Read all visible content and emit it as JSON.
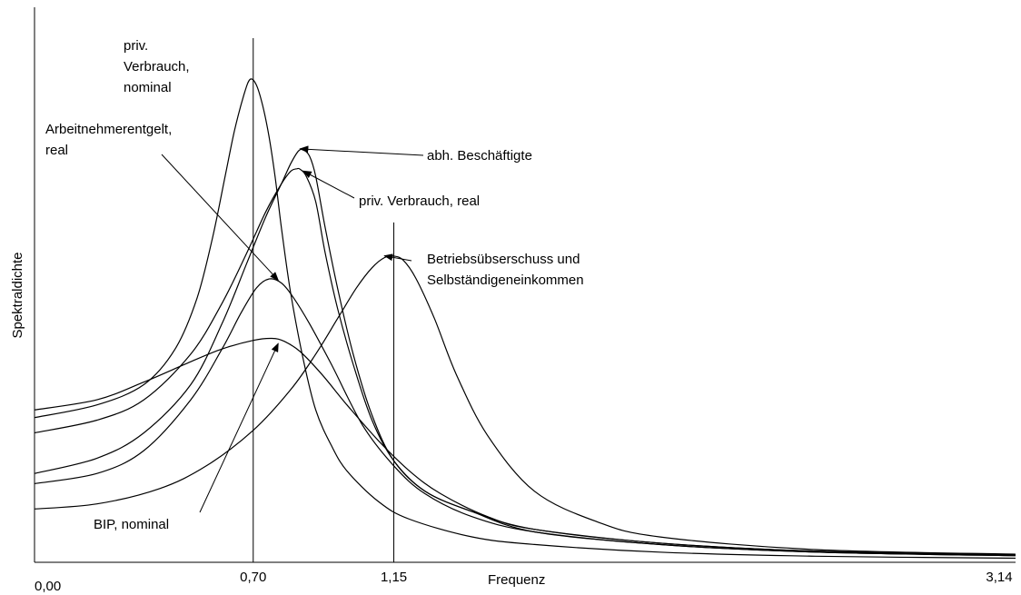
{
  "chart_data": {
    "type": "line",
    "title": "",
    "xlabel": "Frequenz",
    "ylabel": "Spektraldichte",
    "xlim": [
      0,
      3.14
    ],
    "ylim": [
      0,
      1
    ],
    "grid": false,
    "y_tick_labels": false,
    "x_ticks": [
      {
        "value": 0.0,
        "label": "0,00"
      },
      {
        "value": 0.7,
        "label": "0,70"
      },
      {
        "value": 1.15,
        "label": "1,15"
      },
      {
        "value": 3.14,
        "label": "3,14"
      }
    ],
    "reference_lines": [
      {
        "x": 0.7,
        "y_top": 1.0
      },
      {
        "x": 1.15,
        "y_top": 0.637
      }
    ],
    "series": [
      {
        "label_lines": [
          "priv.",
          "Verbrauch,",
          "nominal"
        ],
        "color": "#000000",
        "x": [
          0.0,
          0.2,
          0.35,
          0.45,
          0.52,
          0.57,
          0.61,
          0.64,
          0.67,
          0.69,
          0.71,
          0.73,
          0.75,
          0.77,
          0.79,
          0.82,
          0.86,
          0.9,
          0.95,
          1.0,
          1.1,
          1.2,
          1.4,
          1.6,
          2.0,
          2.5,
          3.14
        ],
        "values": [
          0.285,
          0.31,
          0.35,
          0.42,
          0.52,
          0.64,
          0.76,
          0.85,
          0.92,
          0.951,
          0.94,
          0.9,
          0.84,
          0.76,
          0.66,
          0.53,
          0.4,
          0.3,
          0.23,
          0.18,
          0.12,
          0.085,
          0.05,
          0.035,
          0.02,
          0.012,
          0.008
        ]
      },
      {
        "label_lines": [
          "abh. Beschäftigte"
        ],
        "color": "#000000",
        "x": [
          0.0,
          0.2,
          0.35,
          0.5,
          0.6,
          0.68,
          0.74,
          0.79,
          0.82,
          0.845,
          0.86,
          0.88,
          0.9,
          0.93,
          0.97,
          1.02,
          1.08,
          1.15,
          1.25,
          1.4,
          1.6,
          2.0,
          2.5,
          3.14
        ],
        "values": [
          0.175,
          0.205,
          0.255,
          0.35,
          0.47,
          0.59,
          0.68,
          0.745,
          0.785,
          0.81,
          0.812,
          0.8,
          0.76,
          0.66,
          0.54,
          0.41,
          0.29,
          0.2,
          0.14,
          0.1,
          0.06,
          0.035,
          0.02,
          0.013
        ]
      },
      {
        "label_lines": [
          "priv. Verbrauch, real"
        ],
        "color": "#000000",
        "x": [
          0.0,
          0.2,
          0.35,
          0.5,
          0.6,
          0.68,
          0.74,
          0.79,
          0.82,
          0.84,
          0.85,
          0.87,
          0.9,
          0.93,
          0.97,
          1.02,
          1.08,
          1.15,
          1.25,
          1.4,
          1.6,
          2.0,
          2.5,
          3.14
        ],
        "values": [
          0.255,
          0.28,
          0.32,
          0.41,
          0.51,
          0.61,
          0.69,
          0.745,
          0.77,
          0.775,
          0.774,
          0.76,
          0.71,
          0.61,
          0.5,
          0.39,
          0.28,
          0.2,
          0.14,
          0.1,
          0.065,
          0.038,
          0.022,
          0.015
        ]
      },
      {
        "label_lines": [
          "Arbeitnehmerentgelt,",
          "real"
        ],
        "color": "#000000",
        "x": [
          0.0,
          0.2,
          0.35,
          0.5,
          0.6,
          0.66,
          0.71,
          0.75,
          0.79,
          0.83,
          0.88,
          0.95,
          1.05,
          1.15,
          1.25,
          1.4,
          1.6,
          2.0,
          2.5,
          3.14
        ],
        "values": [
          0.155,
          0.175,
          0.22,
          0.32,
          0.42,
          0.49,
          0.54,
          0.558,
          0.55,
          0.52,
          0.47,
          0.39,
          0.27,
          0.19,
          0.135,
          0.09,
          0.06,
          0.035,
          0.02,
          0.013
        ]
      },
      {
        "label_lines": [
          "BIP, nominal"
        ],
        "color": "#000000",
        "x": [
          0.0,
          0.2,
          0.35,
          0.5,
          0.6,
          0.7,
          0.76,
          0.8,
          0.85,
          0.92,
          1.0,
          1.1,
          1.2,
          1.3,
          1.45,
          1.6,
          2.0,
          2.5,
          3.14
        ],
        "values": [
          0.3,
          0.32,
          0.355,
          0.395,
          0.42,
          0.437,
          0.441,
          0.435,
          0.415,
          0.37,
          0.31,
          0.24,
          0.18,
          0.135,
          0.09,
          0.065,
          0.038,
          0.022,
          0.015
        ]
      },
      {
        "label_lines": [
          "Betriebsübserschuss und",
          "Selbständigeneinkommen"
        ],
        "color": "#000000",
        "x": [
          0.0,
          0.2,
          0.4,
          0.55,
          0.7,
          0.82,
          0.9,
          0.97,
          1.03,
          1.08,
          1.12,
          1.15,
          1.18,
          1.22,
          1.28,
          1.35,
          1.45,
          1.6,
          1.8,
          2.0,
          2.5,
          3.14
        ],
        "values": [
          0.105,
          0.115,
          0.145,
          0.19,
          0.26,
          0.34,
          0.41,
          0.48,
          0.54,
          0.58,
          0.6,
          0.603,
          0.595,
          0.56,
          0.48,
          0.37,
          0.25,
          0.14,
          0.08,
          0.05,
          0.025,
          0.016
        ]
      }
    ],
    "annotations": [
      {
        "series": 0,
        "text_lines": [
          "priv.",
          "Verbrauch,",
          "nominal"
        ],
        "arrow": false
      },
      {
        "series": 1,
        "text_lines": [
          "abh. Beschäftigte"
        ],
        "arrow": true,
        "arrow_to_x": 0.85
      },
      {
        "series": 2,
        "text_lines": [
          "priv. Verbrauch, real"
        ],
        "arrow": true,
        "arrow_to_x": 0.86
      },
      {
        "series": 3,
        "text_lines": [
          "Arbeitnehmerentgelt,",
          "real"
        ],
        "arrow": true,
        "arrow_to_x": 0.78
      },
      {
        "series": 4,
        "text_lines": [
          "BIP, nominal"
        ],
        "arrow": true,
        "arrow_to_x": 0.78
      },
      {
        "series": 5,
        "text_lines": [
          "Betriebsübserschuss und",
          "Selbständigeneinkommen"
        ],
        "arrow": true,
        "arrow_to_x": 1.12
      }
    ]
  }
}
